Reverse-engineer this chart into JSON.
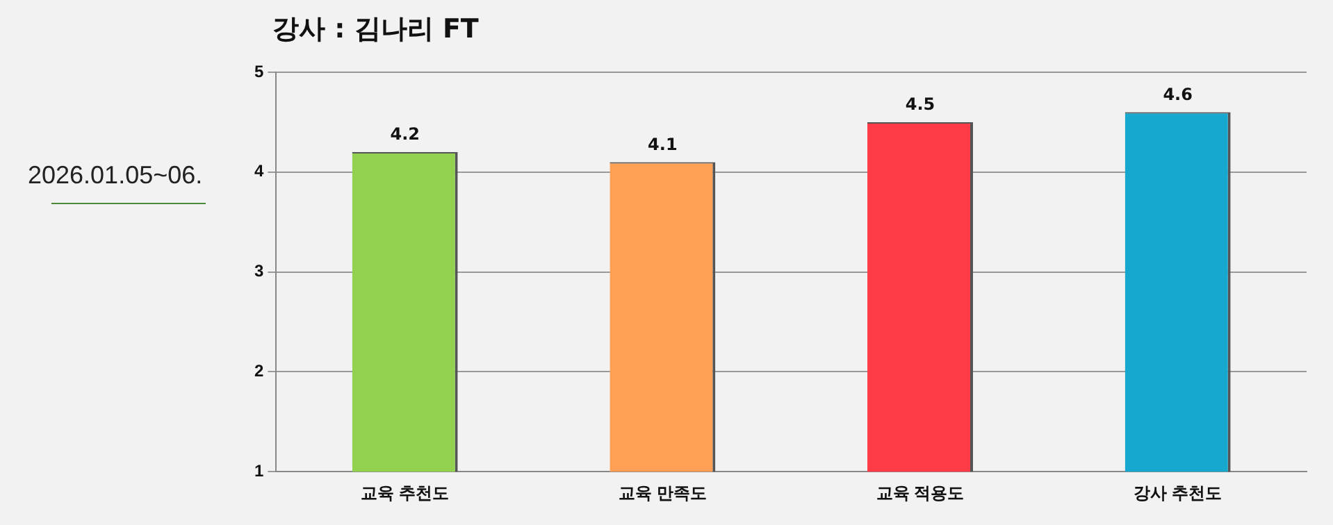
{
  "chart_data": {
    "type": "bar",
    "title": "강사 : 김나리 FT",
    "annotations": [
      "2026.01.05~06."
    ],
    "categories": [
      "교육 추천도",
      "교육 만족도",
      "교육 적용도",
      "강사 추천도"
    ],
    "values": [
      4.2,
      4.1,
      4.5,
      4.6
    ],
    "colors": [
      "#92d050",
      "#ffa056",
      "#ff3b47",
      "#17a8cf"
    ],
    "ylim": [
      1,
      5
    ],
    "yticks": [
      1,
      2,
      3,
      4,
      5
    ],
    "grid": "y",
    "data_labels": true,
    "legend": false
  }
}
